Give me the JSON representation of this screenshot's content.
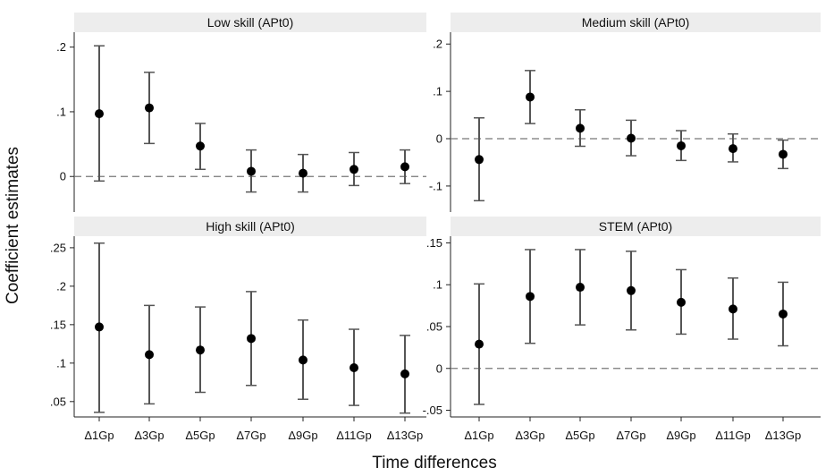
{
  "chart_data": {
    "type": "scatter",
    "ylabel": "Coefficient estimates",
    "xlabel": "Time differences",
    "categories": [
      "Δ1Gp",
      "Δ3Gp",
      "Δ5Gp",
      "Δ7Gp",
      "Δ9Gp",
      "Δ11Gp",
      "Δ13Gp"
    ],
    "panels": [
      {
        "title": "Low skill (APt0)",
        "yticks": [
          0,
          0.1,
          0.2
        ],
        "ytick_labels": [
          "0",
          ".1",
          ".2"
        ],
        "ylim": [
          -0.055,
          0.223
        ],
        "reference_line": 0,
        "estimates": [
          0.097,
          0.106,
          0.047,
          0.008,
          0.005,
          0.011,
          0.015
        ],
        "ci_low": [
          -0.007,
          0.051,
          0.011,
          -0.024,
          -0.024,
          -0.014,
          -0.011
        ],
        "ci_high": [
          0.202,
          0.161,
          0.082,
          0.041,
          0.034,
          0.037,
          0.041
        ]
      },
      {
        "title": "Medium skill (APt0)",
        "yticks": [
          -0.1,
          0,
          0.1,
          0.2
        ],
        "ytick_labels": [
          "-.1",
          "0",
          ".1",
          ".2"
        ],
        "ylim": [
          -0.155,
          0.225
        ],
        "reference_line": 0,
        "estimates": [
          -0.044,
          0.088,
          0.022,
          0.001,
          -0.015,
          -0.021,
          -0.033
        ],
        "ci_low": [
          -0.131,
          0.032,
          -0.016,
          -0.036,
          -0.046,
          -0.049,
          -0.063
        ],
        "ci_high": [
          0.044,
          0.144,
          0.061,
          0.039,
          0.017,
          0.01,
          -0.003
        ]
      },
      {
        "title": "High skill (APt0)",
        "yticks": [
          0.05,
          0.1,
          0.15,
          0.2,
          0.25
        ],
        "ytick_labels": [
          ".05",
          ".1",
          ".15",
          ".2",
          ".25"
        ],
        "ylim": [
          0.03,
          0.265
        ],
        "estimates": [
          0.147,
          0.111,
          0.117,
          0.132,
          0.104,
          0.094,
          0.086
        ],
        "ci_low": [
          0.036,
          0.047,
          0.062,
          0.071,
          0.053,
          0.045,
          0.035
        ],
        "ci_high": [
          0.256,
          0.175,
          0.173,
          0.193,
          0.156,
          0.144,
          0.136
        ]
      },
      {
        "title": "STEM (APt0)",
        "yticks": [
          -0.05,
          0,
          0.05,
          0.1,
          0.15
        ],
        "ytick_labels": [
          "-.05",
          "0",
          ".05",
          ".1",
          ".15"
        ],
        "ylim": [
          -0.058,
          0.158
        ],
        "reference_line": 0,
        "estimates": [
          0.029,
          0.086,
          0.097,
          0.093,
          0.079,
          0.071,
          0.065
        ],
        "ci_low": [
          -0.043,
          0.03,
          0.052,
          0.046,
          0.041,
          0.035,
          0.027
        ],
        "ci_high": [
          0.101,
          0.142,
          0.142,
          0.14,
          0.118,
          0.108,
          0.103
        ]
      }
    ]
  }
}
